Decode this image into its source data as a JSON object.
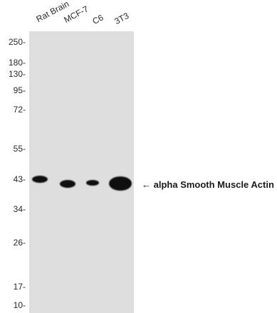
{
  "lanes": [
    "Rat Brain",
    "MCF-7",
    "C6",
    "3T3"
  ],
  "markers": [
    "250",
    "180",
    "130",
    "95",
    "72",
    "55",
    "43",
    "34",
    "26",
    "17",
    "10"
  ],
  "band": {
    "arrow": "←",
    "label": "alpha Smooth Muscle Actin"
  }
}
